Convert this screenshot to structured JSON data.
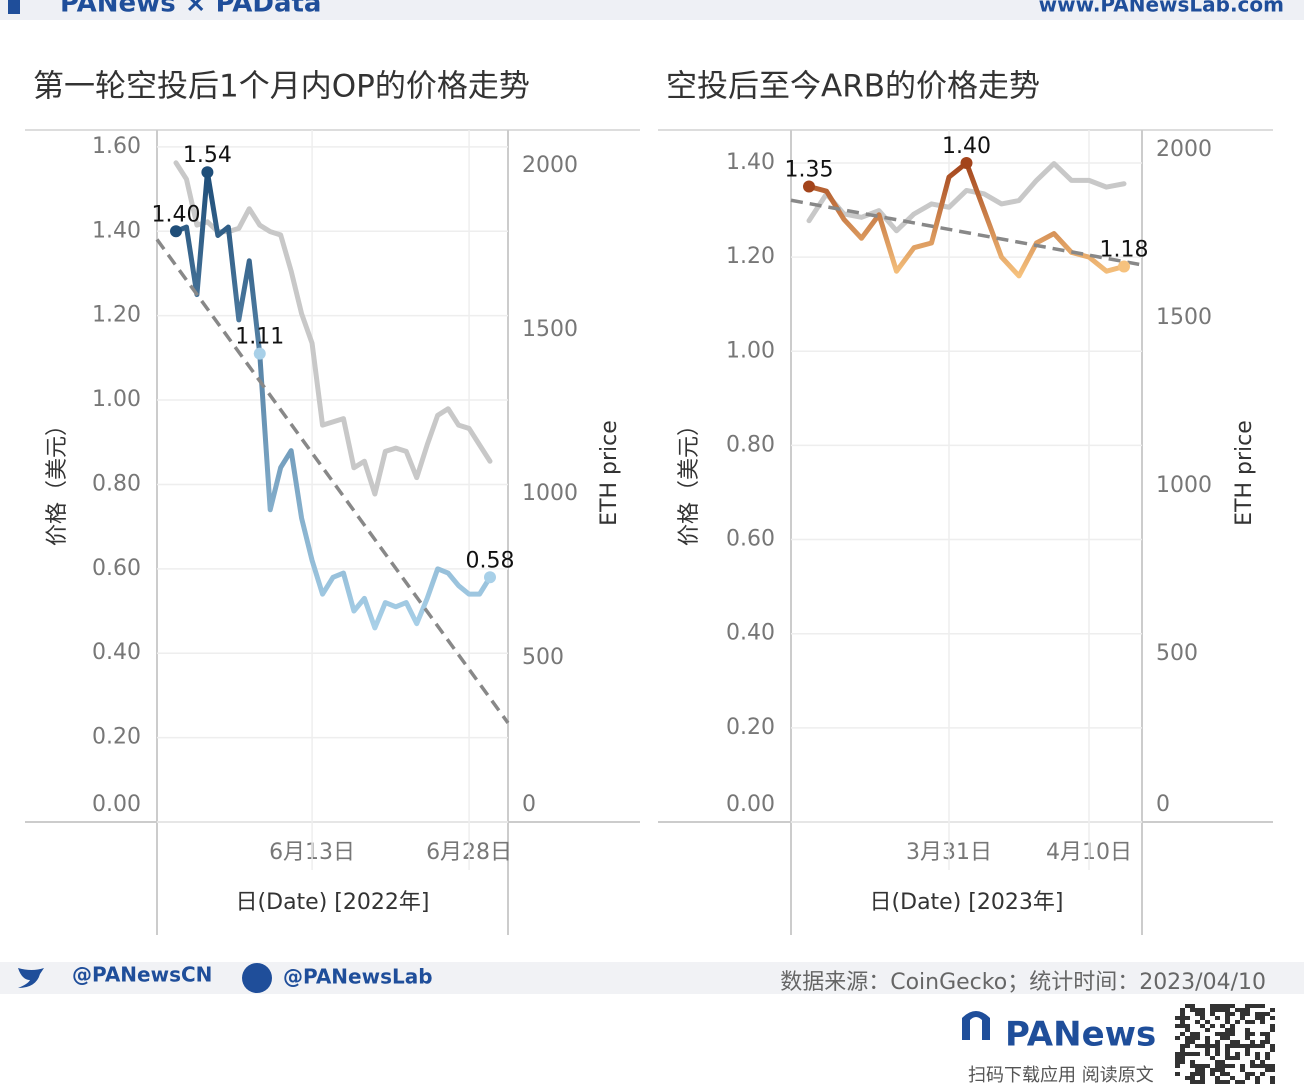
{
  "header": {
    "brand": "PANews × PAData",
    "url": "www.PANewsLab.com"
  },
  "chart_data": [
    {
      "type": "line",
      "title": "第一轮空投后1个月内OP的价格走势",
      "y_label": "价格（美元）",
      "y2_label": "ETH price",
      "x_label": "日(Date) [2022年]",
      "categories": [
        null,
        null,
        null,
        null,
        null,
        null,
        null,
        null,
        null,
        null,
        null,
        null,
        null,
        "6月13日",
        null,
        null,
        null,
        null,
        null,
        null,
        null,
        null,
        null,
        null,
        null,
        null,
        null,
        null,
        "6月28日",
        null,
        null
      ],
      "ylim": [
        0,
        1.64
      ],
      "yticks": [
        {
          "value": 0,
          "label": "0.00"
        },
        {
          "value": 0.2,
          "label": "0.20"
        },
        {
          "value": 0.4,
          "label": "0.40"
        },
        {
          "value": 0.6,
          "label": "0.60"
        },
        {
          "value": 0.8,
          "label": "0.80"
        },
        {
          "value": 1,
          "label": "1.00"
        },
        {
          "value": 1.2,
          "label": "1.20"
        },
        {
          "value": 1.4,
          "label": "1.40"
        },
        {
          "value": 1.6,
          "label": "1.60"
        }
      ],
      "y2lim": [
        0,
        2110
      ],
      "y2ticks": [
        0,
        500,
        1000,
        1500,
        2000
      ],
      "grid": true,
      "trendline": true,
      "series": [
        {
          "colors": [
            "#1f4e79",
            "#a8d0e8"
          ],
          "values": [
            1.4,
            1.41,
            1.25,
            1.54,
            1.39,
            1.41,
            1.19,
            1.33,
            1.11,
            0.74,
            0.84,
            0.88,
            0.72,
            0.62,
            0.54,
            0.58,
            0.59,
            0.5,
            0.53,
            0.46,
            0.52,
            0.51,
            0.52,
            0.47,
            0.53,
            0.6,
            0.59,
            0.56,
            0.54,
            0.54,
            0.58
          ],
          "value_labels": [
            "1.40",
            null,
            null,
            "1.54",
            null,
            null,
            null,
            null,
            "1.11",
            null,
            null,
            null,
            null,
            null,
            null,
            null,
            null,
            null,
            null,
            null,
            null,
            null,
            null,
            null,
            null,
            null,
            null,
            null,
            null,
            null,
            "0.58"
          ]
        },
        {
          "axis": "y2",
          "color": "#c8c8c8",
          "values": [
            2010,
            1960,
            1820,
            1830,
            1800,
            1800,
            1810,
            1870,
            1820,
            1800,
            1790,
            1680,
            1550,
            1460,
            1210,
            1220,
            1230,
            1080,
            1100,
            1000,
            1130,
            1140,
            1130,
            1050,
            1150,
            1240,
            1260,
            1210,
            1200,
            1150,
            1100
          ]
        }
      ]
    },
    {
      "type": "line",
      "title": "空投后至今ARB的价格走势",
      "y_label": "价格（美元）",
      "y2_label": "ETH price",
      "x_label": "日(Date) [2023年]",
      "categories": [
        null,
        null,
        null,
        null,
        null,
        null,
        null,
        null,
        "3月31日",
        null,
        null,
        null,
        null,
        null,
        null,
        null,
        "4月10日",
        null,
        null
      ],
      "ylim": [
        0,
        1.47
      ],
      "yticks": [
        {
          "value": 0,
          "label": "0.00"
        },
        {
          "value": 0.2,
          "label": "0.20"
        },
        {
          "value": 0.4,
          "label": "0.40"
        },
        {
          "value": 0.6,
          "label": "0.60"
        },
        {
          "value": 0.8,
          "label": "0.80"
        },
        {
          "value": 1,
          "label": "1.00"
        },
        {
          "value": 1.2,
          "label": "1.20"
        },
        {
          "value": 1.4,
          "label": "1.40"
        }
      ],
      "y2lim": [
        0,
        2060
      ],
      "y2ticks": [
        0,
        500,
        1000,
        1500,
        2000
      ],
      "grid": true,
      "trendline": true,
      "series": [
        {
          "colors": [
            "#a3441b",
            "#f6c27e"
          ],
          "values": [
            1.35,
            1.34,
            1.28,
            1.24,
            1.29,
            1.17,
            1.22,
            1.23,
            1.37,
            1.4,
            1.3,
            1.2,
            1.16,
            1.23,
            1.25,
            1.21,
            1.2,
            1.17,
            1.18
          ],
          "value_labels": [
            "1.35",
            null,
            null,
            null,
            null,
            null,
            null,
            null,
            null,
            "1.40",
            null,
            null,
            null,
            null,
            null,
            null,
            null,
            null,
            "1.18"
          ]
        },
        {
          "axis": "y2",
          "color": "#c8c8c8",
          "values": [
            1790,
            1870,
            1810,
            1800,
            1820,
            1760,
            1810,
            1840,
            1830,
            1880,
            1870,
            1840,
            1850,
            1910,
            1960,
            1910,
            1910,
            1890,
            1900
          ]
        }
      ]
    }
  ],
  "footer": {
    "twitter": "@PANewsCN",
    "facebook": "@PANewsLab",
    "source": "数据来源：CoinGecko；统计时间：2023/04/10",
    "logo": "PANews",
    "qr_caption": "扫码下载应用 阅读原文"
  }
}
